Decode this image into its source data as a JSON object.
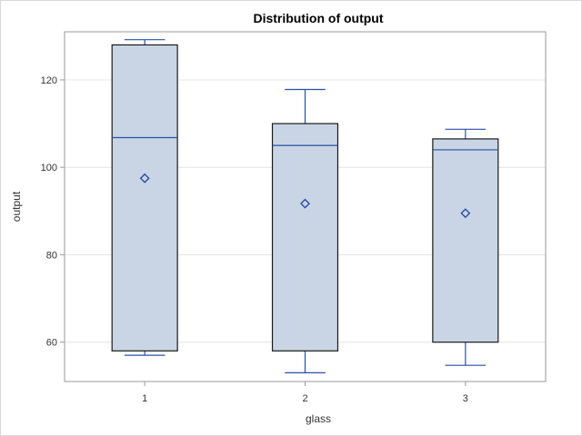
{
  "chart_data": {
    "type": "box",
    "title": "Distribution of output",
    "xlabel": "glass",
    "ylabel": "output",
    "categories": [
      "1",
      "2",
      "3"
    ],
    "ylim": [
      51,
      131
    ],
    "yticks": [
      60,
      80,
      100,
      120
    ],
    "ytick_labels": [
      "60",
      "80",
      "100",
      "120"
    ],
    "grid": true,
    "boxes": [
      {
        "category": "1",
        "min": 57,
        "q1": 58,
        "median": 106.8,
        "q3": 128,
        "max": 129.2,
        "mean": 97.5
      },
      {
        "category": "2",
        "min": 53,
        "q1": 58,
        "median": 105,
        "q3": 110,
        "max": 117.8,
        "mean": 91.7
      },
      {
        "category": "3",
        "min": 54.7,
        "q1": 60,
        "median": 104,
        "q3": 106.5,
        "max": 108.7,
        "mean": 89.5
      }
    ],
    "colors": {
      "box_fill": "#c9d5e4",
      "box_edge": "#1a1a1a",
      "median": "#2a4ea8",
      "whisker": "#2a4ea8",
      "mean_marker": "#2a4ea8",
      "grid": "#e4e4e4",
      "axis": "#9a9a9a"
    },
    "mean_marker": "diamond"
  }
}
